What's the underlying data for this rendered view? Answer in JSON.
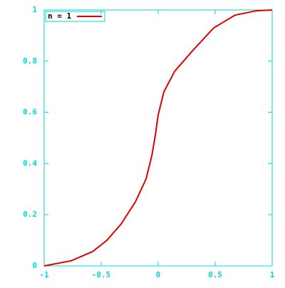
{
  "chart_data": {
    "type": "line",
    "x": [
      -1,
      -0.7625,
      -0.575,
      -0.45,
      -0.325,
      -0.2,
      -0.106,
      -0.056,
      -0.025,
      0,
      0.05,
      0.144,
      0.3,
      0.4875,
      0.675,
      0.8625,
      1
    ],
    "series": [
      {
        "name": "n = 1",
        "color": "#dd0000",
        "values": [
          0,
          0.02,
          0.056,
          0.1,
          0.164,
          0.25,
          0.34,
          0.43,
          0.51,
          0.59,
          0.68,
          0.76,
          0.84,
          0.93,
          0.98,
          0.997,
          1
        ]
      }
    ],
    "xlim": [
      -1,
      1
    ],
    "ylim": [
      0,
      1
    ],
    "xticks": [
      -1,
      -0.5,
      0,
      0.5,
      1
    ],
    "yticks": [
      0,
      0.2,
      0.4,
      0.6,
      0.8,
      1
    ],
    "axis_color": "#00d8d8",
    "legend": "top-left"
  }
}
